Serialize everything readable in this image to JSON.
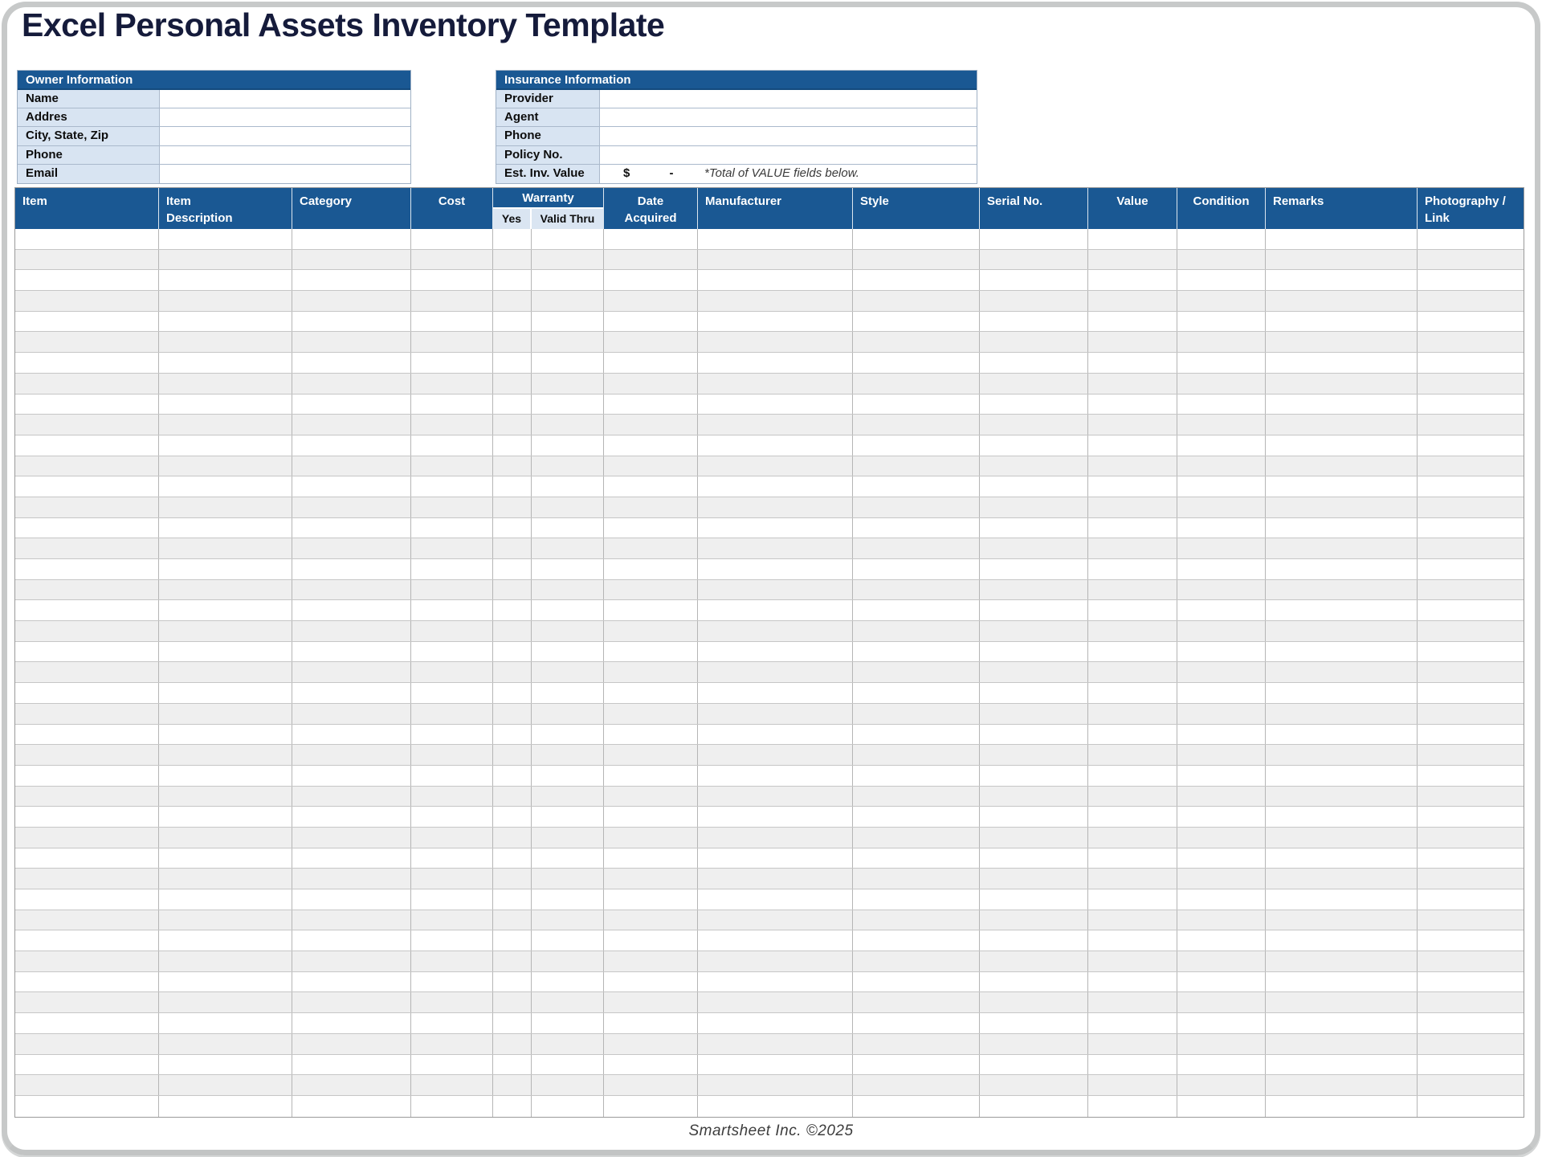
{
  "page": {
    "title": "Excel Personal Assets Inventory Template",
    "footer": "Smartsheet Inc. ©2025"
  },
  "colors": {
    "header_blue": "#1a5893",
    "label_light_blue": "#d8e4f2",
    "title_navy": "#151b3b",
    "row_stripe": "#efefef"
  },
  "owner_box": {
    "title": "Owner Information",
    "fields": [
      {
        "label": "Name",
        "value": ""
      },
      {
        "label": "Addres",
        "value": ""
      },
      {
        "label": "City, State, Zip",
        "value": ""
      },
      {
        "label": "Phone",
        "value": ""
      },
      {
        "label": "Email",
        "value": ""
      }
    ]
  },
  "insurance_box": {
    "title": "Insurance Information",
    "fields": [
      {
        "label": "Provider",
        "value": ""
      },
      {
        "label": "Agent",
        "value": ""
      },
      {
        "label": "Phone",
        "value": ""
      },
      {
        "label": "Policy No.",
        "value": ""
      }
    ],
    "est_row": {
      "label": "Est. Inv. Value",
      "currency": "$",
      "amount": "-",
      "note": "*Total of VALUE fields below."
    }
  },
  "table": {
    "columns": [
      {
        "label": "Item"
      },
      {
        "label": "Item\nDescription"
      },
      {
        "label": "Category"
      },
      {
        "label": "Cost"
      },
      {
        "label": "Warranty"
      },
      {
        "label": "Date\nAcquired"
      },
      {
        "label": "Manufacturer"
      },
      {
        "label": "Style"
      },
      {
        "label": "Serial No."
      },
      {
        "label": "Value"
      },
      {
        "label": "Condition"
      },
      {
        "label": "Remarks"
      },
      {
        "label": "Photography /\nLink"
      }
    ],
    "warranty_sub": [
      {
        "label": "Yes"
      },
      {
        "label": "Valid Thru"
      }
    ],
    "row_count": 43
  }
}
